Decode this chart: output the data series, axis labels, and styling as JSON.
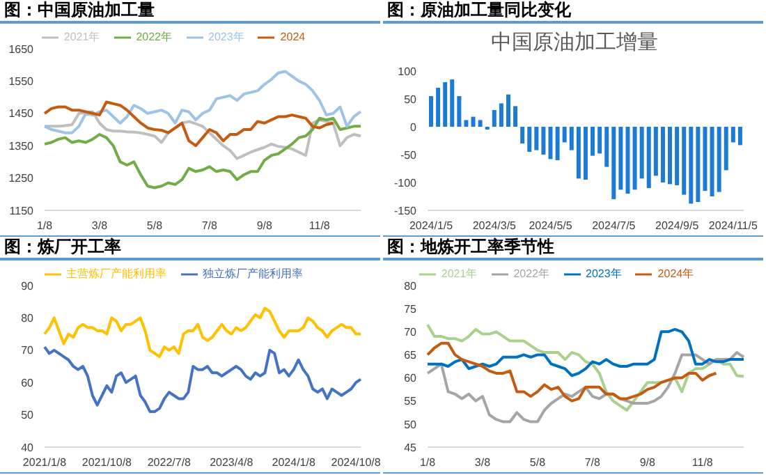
{
  "chart_data": [
    {
      "type": "line",
      "title": "图：中国原油加工量",
      "legend": "top",
      "ylim": [
        1150,
        1650
      ],
      "yticks": [
        1150,
        1250,
        1350,
        1450,
        1550,
        1650
      ],
      "categories": [
        "1/8",
        null,
        null,
        null,
        null,
        null,
        null,
        null,
        "3/8",
        null,
        null,
        null,
        null,
        null,
        null,
        null,
        "5/8",
        null,
        null,
        null,
        null,
        null,
        null,
        null,
        "7/8",
        null,
        null,
        null,
        null,
        null,
        null,
        null,
        "9/8",
        null,
        null,
        null,
        null,
        null,
        null,
        null,
        "11/8",
        null,
        null,
        null,
        null,
        null,
        null
      ],
      "series": [
        {
          "name": "2021年",
          "color": "#bfbfbf",
          "values": [
            1410,
            1410,
            1410,
            1412,
            1415,
            1450,
            1452,
            1455,
            1420,
            1400,
            1395,
            1395,
            1393,
            1392,
            1390,
            1385,
            1380,
            1360,
            1390,
            1405,
            1420,
            1425,
            1418,
            1410,
            1390,
            1370,
            1350,
            1335,
            1310,
            1320,
            1330,
            1338,
            1345,
            1355,
            1348,
            1345,
            1340,
            1330,
            1320,
            1420,
            1430,
            1425,
            1420,
            1350,
            1375,
            1385,
            1380
          ]
        },
        {
          "name": "2022年",
          "color": "#70ad47",
          "values": [
            1355,
            1360,
            1370,
            1375,
            1360,
            1365,
            1360,
            1370,
            1385,
            1375,
            1350,
            1300,
            1290,
            1300,
            1260,
            1225,
            1220,
            1225,
            1235,
            1230,
            1245,
            1280,
            1270,
            1275,
            1285,
            1270,
            1275,
            1270,
            1245,
            1260,
            1270,
            1270,
            1305,
            1320,
            1325,
            1340,
            1355,
            1375,
            1380,
            1400,
            1435,
            1430,
            1435,
            1400,
            1405,
            1410,
            1410
          ]
        },
        {
          "name": "2023年",
          "color": "#9dc3e6",
          "values": [
            1410,
            1400,
            1395,
            1390,
            1390,
            1410,
            1450,
            1445,
            1455,
            1460,
            1440,
            1420,
            1440,
            1475,
            1465,
            1450,
            1455,
            1460,
            1450,
            1420,
            1460,
            1455,
            1430,
            1450,
            1460,
            1495,
            1500,
            1505,
            1490,
            1510,
            1515,
            1520,
            1540,
            1555,
            1575,
            1580,
            1565,
            1550,
            1540,
            1520,
            1490,
            1445,
            1450,
            1470,
            1410,
            1440,
            1455
          ]
        },
        {
          "name": "2024",
          "color": "#c55a11",
          "values": [
            1450,
            1465,
            1470,
            1470,
            1460,
            1460,
            1455,
            1450,
            1445,
            1485,
            1480,
            1475,
            1460,
            1440,
            1420,
            1405,
            1400,
            1398,
            1390,
            1405,
            1420,
            1365,
            1350,
            1375,
            1400,
            1390,
            1365,
            1385,
            1385,
            1400,
            1400,
            1425,
            1420,
            1430,
            1440,
            1440,
            1445,
            1440,
            1435,
            1410,
            1405,
            1415,
            1420,
            null,
            null,
            null,
            null
          ]
        }
      ]
    },
    {
      "type": "bar",
      "title": "图：原油加工量同比变化",
      "subtitle": "中国原油加工增量",
      "ylim": [
        -150,
        100
      ],
      "yticks": [
        -150,
        -100,
        -50,
        0,
        50,
        100
      ],
      "categories": [
        "2024/1/5",
        null,
        null,
        null,
        null,
        null,
        null,
        null,
        null,
        "2024/3/5",
        null,
        null,
        null,
        null,
        null,
        null,
        null,
        "2024/5/5",
        null,
        null,
        null,
        null,
        null,
        null,
        null,
        null,
        "2024/7/5",
        null,
        null,
        null,
        null,
        null,
        null,
        null,
        null,
        "2024/9/5",
        null,
        null,
        null,
        null,
        null,
        null,
        null,
        "2024/11/5",
        null
      ],
      "series": [
        {
          "color": "#1c7cd5",
          "values": [
            55,
            70,
            80,
            85,
            55,
            12,
            18,
            12,
            -5,
            30,
            42,
            58,
            37,
            -30,
            -45,
            -42,
            -50,
            -58,
            -60,
            -28,
            -42,
            -93,
            -95,
            -52,
            -48,
            -72,
            -130,
            -113,
            -120,
            -113,
            -93,
            -110,
            -88,
            -100,
            -103,
            -105,
            -122,
            -138,
            -135,
            -115,
            -125,
            -117,
            -78,
            -28,
            -33
          ]
        }
      ]
    },
    {
      "type": "line",
      "title": "图：炼厂开工率",
      "legend": "top",
      "ylim": [
        40,
        90
      ],
      "yticks": [
        40,
        50,
        60,
        70,
        80,
        90
      ],
      "categories": [
        "2021/1/8",
        null,
        null,
        null,
        null,
        null,
        null,
        null,
        null,
        null,
        null,
        null,
        null,
        "2021/10/8",
        null,
        null,
        null,
        null,
        null,
        null,
        null,
        null,
        null,
        null,
        null,
        null,
        "2022/7/8",
        null,
        null,
        null,
        null,
        null,
        null,
        null,
        null,
        null,
        null,
        null,
        null,
        "2023/4/8",
        null,
        null,
        null,
        null,
        null,
        null,
        null,
        null,
        null,
        null,
        null,
        null,
        "2024/1/8",
        null,
        null,
        null,
        null,
        null,
        null,
        null,
        null,
        null,
        null,
        null,
        null,
        "2024/10/8",
        null
      ],
      "series": [
        {
          "name": "主营炼厂产能利用率",
          "color": "#ffc000",
          "values": [
            75,
            77,
            80,
            76,
            72,
            75,
            74,
            77,
            78,
            77,
            77,
            76,
            76,
            75,
            80,
            79,
            76,
            78,
            78,
            79,
            80,
            76,
            70,
            69,
            68,
            71,
            70,
            71,
            69,
            75,
            76,
            76,
            78,
            74,
            73,
            74,
            76,
            78,
            76,
            75,
            77,
            76,
            77,
            79,
            81,
            80,
            83,
            82,
            79,
            76,
            74,
            76,
            76,
            76,
            77,
            80,
            79,
            77,
            76,
            74,
            76,
            77,
            78,
            77,
            77,
            75,
            75
          ]
        },
        {
          "name": "独立炼厂产能利用率",
          "color": "#4472c4",
          "values": [
            71,
            69,
            70,
            69,
            68,
            67,
            65,
            64,
            65,
            62,
            56,
            53,
            56,
            59,
            57,
            62,
            63,
            60,
            61,
            62,
            56,
            54,
            51,
            51,
            52,
            55,
            57,
            56,
            55,
            55,
            57,
            65,
            64,
            64,
            65,
            63,
            63,
            62,
            63,
            64,
            65,
            64,
            62,
            61,
            63,
            62,
            63,
            70,
            69,
            63,
            64,
            62,
            64,
            67,
            64,
            62,
            58,
            57,
            58,
            55,
            58,
            57,
            56,
            57,
            58,
            60,
            61
          ]
        }
      ]
    },
    {
      "type": "line",
      "title": "图：地炼开工率季节性",
      "legend": "top",
      "ylim": [
        45,
        80
      ],
      "yticks": [
        45,
        50,
        55,
        60,
        65,
        70,
        75,
        80
      ],
      "categories": [
        "1/8",
        null,
        null,
        null,
        null,
        null,
        null,
        null,
        "3/8",
        null,
        null,
        null,
        null,
        null,
        null,
        null,
        "5/8",
        null,
        null,
        null,
        null,
        null,
        null,
        null,
        "7/8",
        null,
        null,
        null,
        null,
        null,
        null,
        null,
        "9/8",
        null,
        null,
        null,
        null,
        null,
        null,
        null,
        "11/8",
        null,
        null,
        null,
        null,
        null,
        null
      ],
      "series": [
        {
          "name": "2021年",
          "color": "#a9d18e",
          "values": [
            71.5,
            69,
            69,
            68.5,
            68.5,
            68,
            69,
            70.5,
            69.5,
            69.5,
            70,
            69,
            68,
            68,
            68,
            67,
            66,
            65.5,
            65.5,
            65.5,
            64,
            65.5,
            65,
            63.5,
            63,
            61,
            57,
            55,
            54,
            53,
            55,
            57,
            59,
            59,
            59,
            59.5,
            60,
            57,
            61,
            62,
            62,
            63,
            64,
            63,
            63,
            60.5,
            60.3
          ]
        },
        {
          "name": "2022年",
          "color": "#a5a5a5",
          "values": [
            61,
            62,
            63,
            57,
            56.5,
            55.5,
            56.5,
            55,
            56,
            52,
            51,
            50.5,
            50.5,
            52.5,
            51,
            50.5,
            50.5,
            53,
            54.5,
            55.5,
            56.5,
            56,
            57,
            58,
            56,
            55.5,
            56.5,
            56.5,
            55.5,
            55,
            54.5,
            54.5,
            54.5,
            55,
            56,
            58,
            61,
            65,
            65,
            65,
            64,
            63,
            64,
            64,
            64,
            65.5,
            64.5
          ]
        },
        {
          "name": "2023年",
          "color": "#0070c0",
          "values": [
            63,
            63,
            63,
            62.5,
            63.5,
            64,
            62,
            62.5,
            63,
            62.5,
            63,
            64.5,
            64.5,
            64.5,
            65,
            64.5,
            65,
            65,
            63,
            62.5,
            62,
            60.5,
            61,
            62,
            63.5,
            63,
            64,
            63,
            62.5,
            62.5,
            63,
            63,
            63,
            64,
            70,
            70,
            70.5,
            70,
            68,
            63,
            63,
            64,
            63.5,
            63.5,
            64,
            64,
            64
          ]
        },
        {
          "name": "2024年",
          "color": "#c55a11",
          "values": [
            65,
            66.5,
            67.5,
            67.5,
            65,
            64,
            63.5,
            63,
            62.5,
            61.5,
            61,
            61,
            61.5,
            57,
            57,
            56,
            57,
            58.5,
            57.5,
            58,
            56,
            55,
            55.5,
            58,
            58,
            58,
            56.5,
            56.5,
            55.5,
            55.5,
            56,
            56.5,
            57.5,
            58,
            59,
            59.5,
            60,
            60,
            61,
            61,
            59.5,
            60.5,
            61,
            null,
            null,
            null,
            null
          ]
        }
      ]
    }
  ]
}
